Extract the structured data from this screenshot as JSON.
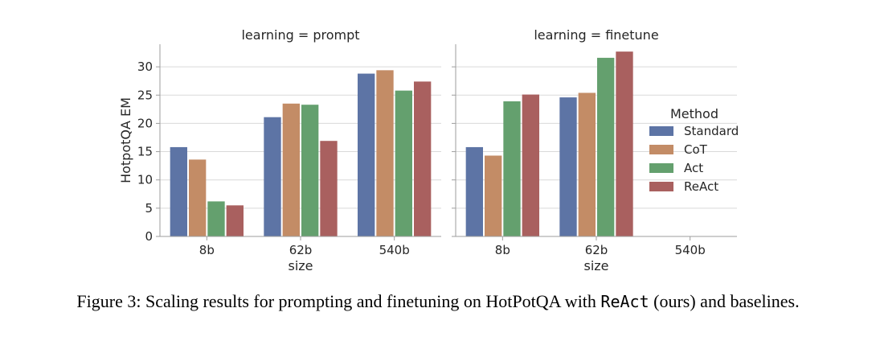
{
  "chart_data": {
    "type": "bar",
    "ylabel": "HotpotQA EM",
    "xlabel": "size",
    "ylim": [
      0,
      34
    ],
    "yticks": [
      0,
      5,
      10,
      15,
      20,
      25,
      30
    ],
    "grid": true,
    "categories": [
      "8b",
      "62b",
      "540b"
    ],
    "legend": {
      "title": "Method",
      "placement": "right",
      "entries": [
        "Standard",
        "CoT",
        "Act",
        "ReAct"
      ]
    },
    "colors": {
      "Standard": "#5d74a5",
      "CoT": "#c38c66",
      "Act": "#64a06e",
      "ReAct": "#a9605f"
    },
    "panels": [
      {
        "title": "learning = prompt",
        "series": [
          {
            "name": "Standard",
            "values": [
              15.8,
              21.1,
              28.8
            ]
          },
          {
            "name": "CoT",
            "values": [
              13.6,
              23.5,
              29.4
            ]
          },
          {
            "name": "Act",
            "values": [
              6.2,
              23.3,
              25.8
            ]
          },
          {
            "name": "ReAct",
            "values": [
              5.5,
              16.9,
              27.4
            ]
          }
        ]
      },
      {
        "title": "learning = finetune",
        "series": [
          {
            "name": "Standard",
            "values": [
              15.8,
              24.6,
              null
            ]
          },
          {
            "name": "CoT",
            "values": [
              14.3,
              25.4,
              null
            ]
          },
          {
            "name": "Act",
            "values": [
              23.9,
              31.6,
              null
            ]
          },
          {
            "name": "ReAct",
            "values": [
              25.1,
              32.7,
              null
            ]
          }
        ]
      }
    ]
  },
  "caption": {
    "prefix": "Figure 3: Scaling results for prompting and finetuning on HotPotQA with ",
    "code": "ReAct",
    "suffix": " (ours) and baselines."
  }
}
